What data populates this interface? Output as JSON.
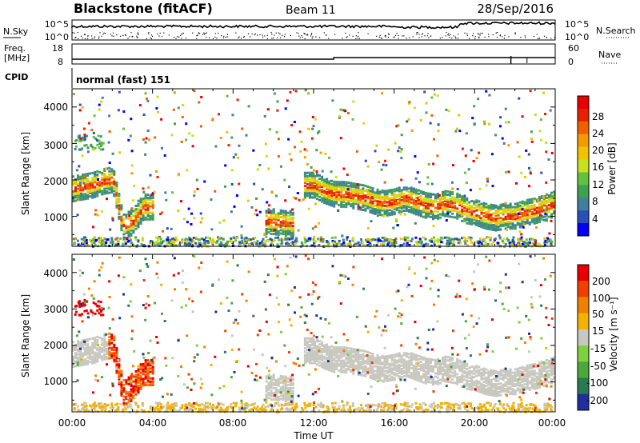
{
  "header": {
    "station": "Blackstone (fitACF)",
    "beam": "Beam 11",
    "date": "28/Sep/2016"
  },
  "noise_panel": {
    "left_label": "N.Sky",
    "right_label": "N.Search",
    "left_ticks": [
      "10^5",
      "10^0"
    ],
    "right_ticks": [
      "10^5",
      "10^0"
    ]
  },
  "freq_panel": {
    "left_label_line1": "Freq.",
    "left_label_line2": "[MHz]",
    "right_label": "Nave",
    "left_ticks": [
      "18",
      "8"
    ],
    "right_ticks": [
      "60",
      "0"
    ]
  },
  "cpid": {
    "label": "CPID",
    "program": "normal (fast) 151"
  },
  "power_panel": {
    "ylabel": "Slant Range [km]",
    "yticks": [
      "4000",
      "3000",
      "2000",
      "1000"
    ],
    "colorbar_label": "Power [dB]",
    "colorbar_ticks": [
      "28",
      "24",
      "20",
      "16",
      "12",
      "8",
      "4"
    ],
    "colors": [
      "#0000ff",
      "#2b4fb8",
      "#3f7f9f",
      "#3fa050",
      "#62c23c",
      "#c9e020",
      "#f2c200",
      "#f49a00",
      "#f06000",
      "#e82000",
      "#e80000"
    ]
  },
  "velocity_panel": {
    "ylabel": "Slant Range [km]",
    "yticks": [
      "4000",
      "3000",
      "2000",
      "1000"
    ],
    "colorbar_label": "Velocity [m s⁻¹]",
    "colorbar_ticks": [
      "200",
      "100",
      "50",
      "15",
      "-15",
      "-50",
      "-100",
      "-200"
    ],
    "colors": [
      "#1f2fa0",
      "#2a7a50",
      "#4da83c",
      "#7ed040",
      "#c8c8c0",
      "#f2b200",
      "#f08000",
      "#f04000",
      "#e80000"
    ]
  },
  "time_axis": {
    "ticks": [
      "00:00",
      "04:00",
      "08:00",
      "12:00",
      "16:00",
      "20:00",
      "00:00"
    ],
    "label": "Time UT"
  },
  "chart_data": [
    {
      "type": "heatmap",
      "title": "Power",
      "xlabel": "Time UT",
      "ylabel": "Slant Range [km]",
      "x_range": [
        "00:00",
        "24:00"
      ],
      "ylim": [
        180,
        4500
      ],
      "colorbar": {
        "label": "Power [dB]",
        "range": [
          0,
          30
        ]
      },
      "ridge_backscatter": {
        "t_hours": [
          0,
          0.5,
          1,
          1.5,
          2,
          2.5,
          3,
          3.5,
          4,
          4.5,
          5,
          5.5,
          6,
          6.5,
          7,
          7.5,
          8,
          8.5,
          9,
          9.5,
          10,
          10.5,
          11,
          11.5,
          12,
          12.5,
          13,
          13.5,
          14,
          14.5,
          15,
          15.5,
          16,
          16.5,
          17,
          17.5,
          18,
          18.5,
          19,
          19.5,
          20,
          20.5,
          21,
          21.5,
          22,
          22.5,
          23,
          23.5,
          24
        ],
        "range_km": [
          1800,
          1850,
          1900,
          2000,
          2050,
          750,
          900,
          1300,
          null,
          null,
          null,
          null,
          null,
          null,
          null,
          null,
          null,
          null,
          null,
          null,
          900,
          850,
          null,
          null,
          1900,
          1750,
          1650,
          1650,
          1600,
          1550,
          1450,
          1400,
          1450,
          1550,
          1450,
          1350,
          1300,
          1400,
          1350,
          1200,
          1150,
          1050,
          1000,
          1050,
          1050,
          1150,
          1200,
          1300,
          1400
        ]
      }
    },
    {
      "type": "heatmap",
      "title": "Velocity",
      "xlabel": "Time UT",
      "ylabel": "Slant Range [km]",
      "x_range": [
        "00:00",
        "24:00"
      ],
      "ylim": [
        180,
        4500
      ],
      "colorbar": {
        "label": "Velocity [m s⁻¹]",
        "range": [
          -200,
          200
        ]
      }
    }
  ]
}
